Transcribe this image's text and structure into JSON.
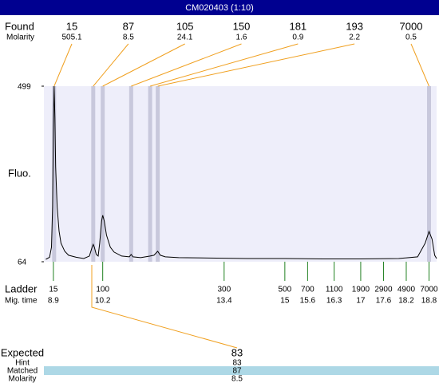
{
  "header": {
    "title": "CM020403 (1:10)"
  },
  "chart_data": {
    "type": "electropherogram",
    "y_label": "Fluo.",
    "ylim": [
      64,
      499
    ],
    "yticks": [
      64,
      499
    ],
    "xlim": [
      8.65,
      19.0
    ],
    "trace_color": "#000000",
    "band_color": "#c8c8dc",
    "link_color": "#f0a020",
    "ladder_color": "#208020",
    "found": {
      "label": "Found",
      "molarity_label": "Molarity",
      "sizes": [
        15,
        87,
        105,
        150,
        181,
        193,
        7000
      ],
      "molarities": [
        505.1,
        8.5,
        24.1,
        1.6,
        0.9,
        2.2,
        0.5
      ],
      "times": [
        8.92,
        9.95,
        10.2,
        10.95,
        11.45,
        11.65,
        18.8
      ]
    },
    "ladder": {
      "label": "Ladder",
      "time_label": "Mig. time",
      "sizes": [
        15,
        100,
        300,
        500,
        700,
        1100,
        1900,
        2900,
        4900,
        7000
      ],
      "times": [
        8.9,
        10.2,
        13.4,
        15,
        15.6,
        16.3,
        17,
        17.6,
        18.2,
        18.8
      ]
    },
    "trace": {
      "x": [
        8.7,
        8.8,
        8.85,
        8.88,
        8.9,
        8.92,
        8.94,
        8.96,
        9.0,
        9.05,
        9.1,
        9.2,
        9.3,
        9.5,
        9.7,
        9.85,
        9.92,
        9.95,
        9.98,
        10.03,
        10.08,
        10.12,
        10.17,
        10.2,
        10.24,
        10.3,
        10.4,
        10.5,
        10.7,
        10.9,
        10.95,
        11.0,
        11.2,
        11.45,
        11.55,
        11.65,
        11.72,
        11.85,
        12.2,
        13,
        14,
        15,
        16,
        17,
        18,
        18.5,
        18.7,
        18.8,
        18.88,
        18.95,
        19.0
      ],
      "y": [
        70,
        75,
        100,
        200,
        400,
        499,
        420,
        300,
        200,
        140,
        110,
        90,
        80,
        75,
        72,
        78,
        100,
        107,
        100,
        82,
        78,
        110,
        165,
        179,
        165,
        130,
        100,
        88,
        78,
        76,
        82,
        76,
        74,
        78,
        80,
        90,
        80,
        76,
        74,
        73,
        72,
        72,
        71,
        71,
        72,
        76,
        110,
        139,
        120,
        80,
        72
      ]
    }
  },
  "expected": {
    "labels": [
      "Expected",
      "Hint",
      "Matched",
      "Molarity"
    ],
    "values": [
      83,
      83,
      87,
      8.5
    ]
  }
}
